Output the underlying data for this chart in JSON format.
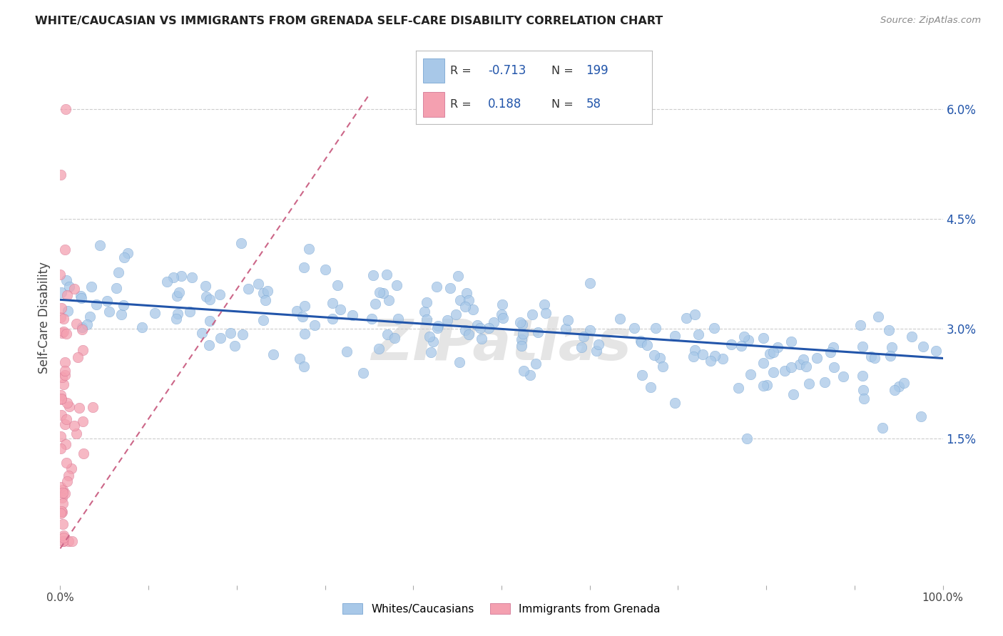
{
  "title": "WHITE/CAUCASIAN VS IMMIGRANTS FROM GRENADA SELF-CARE DISABILITY CORRELATION CHART",
  "source": "Source: ZipAtlas.com",
  "ylabel": "Self-Care Disability",
  "yticks": [
    "1.5%",
    "3.0%",
    "4.5%",
    "6.0%"
  ],
  "ytick_vals": [
    0.015,
    0.03,
    0.045,
    0.06
  ],
  "ylim": [
    -0.005,
    0.068
  ],
  "xlim": [
    0.0,
    1.0
  ],
  "legend_r_blue": "-0.713",
  "legend_n_blue": "199",
  "legend_r_pink": "0.188",
  "legend_n_pink": "58",
  "blue_color": "#a8c8e8",
  "blue_edge_color": "#6699cc",
  "pink_color": "#f4a0b0",
  "pink_edge_color": "#cc6688",
  "blue_line_color": "#2255aa",
  "pink_line_color": "#cc6688",
  "background_color": "#ffffff",
  "watermark": "ZIPatlas",
  "blue_trend_x": [
    0.0,
    1.0
  ],
  "blue_trend_y": [
    0.034,
    0.026
  ],
  "pink_trend_x": [
    0.0,
    0.35
  ],
  "pink_trend_y": [
    0.0,
    0.062
  ]
}
